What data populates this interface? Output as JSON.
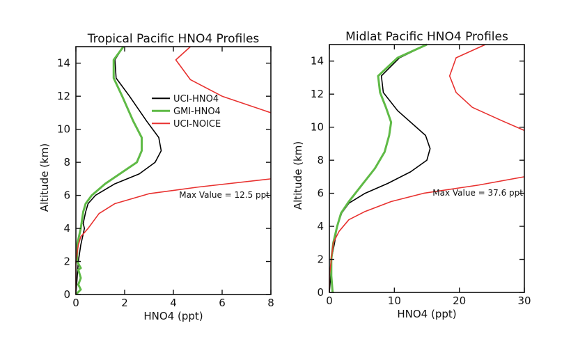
{
  "chart_data": [
    {
      "type": "line",
      "title": "Tropical Pacific HNO4 Profiles",
      "xlabel": "HNO4 (ppt)",
      "ylabel": "Altitude (km)",
      "xlim": [
        0,
        8
      ],
      "ylim": [
        0,
        15
      ],
      "xticks": [
        0,
        2,
        4,
        6,
        8
      ],
      "yticks": [
        0,
        2,
        4,
        6,
        8,
        10,
        12,
        14
      ],
      "annotation": "Max Value = 12.5 ppt",
      "legend": "upper-center",
      "series": [
        {
          "name": "UCI-HNO4",
          "color": "#000000",
          "points": [
            [
              0,
              0
            ],
            [
              0.05,
              1
            ],
            [
              0.1,
              2
            ],
            [
              0.2,
              3
            ],
            [
              0.35,
              4
            ],
            [
              0.3,
              4.3
            ],
            [
              0.4,
              5
            ],
            [
              0.5,
              5.5
            ],
            [
              0.8,
              6
            ],
            [
              1.6,
              6.7
            ],
            [
              2.6,
              7.3
            ],
            [
              3.25,
              8
            ],
            [
              3.5,
              8.7
            ],
            [
              3.4,
              9.5
            ],
            [
              2.9,
              10.5
            ],
            [
              2.2,
              12
            ],
            [
              1.65,
              13.1
            ],
            [
              1.6,
              14.2
            ],
            [
              1.95,
              15
            ]
          ]
        },
        {
          "name": "GMI-HNO4",
          "color": "#5fba46",
          "points": [
            [
              0,
              0
            ],
            [
              0.2,
              0.3
            ],
            [
              0.1,
              0.6
            ],
            [
              0.2,
              1
            ],
            [
              0.1,
              1.5
            ],
            [
              0.2,
              1.6
            ],
            [
              0.05,
              2
            ],
            [
              0.05,
              3
            ],
            [
              0.2,
              4
            ],
            [
              0.3,
              5
            ],
            [
              0.4,
              5.5
            ],
            [
              0.65,
              6
            ],
            [
              1.2,
              6.7
            ],
            [
              1.8,
              7.3
            ],
            [
              2.5,
              8
            ],
            [
              2.7,
              8.7
            ],
            [
              2.7,
              9.5
            ],
            [
              2.35,
              10.5
            ],
            [
              1.9,
              12
            ],
            [
              1.55,
              13.1
            ],
            [
              1.55,
              14.2
            ],
            [
              1.95,
              15
            ]
          ]
        },
        {
          "name": "UCI-NOICE",
          "color": "#e8312f",
          "points": [
            [
              0,
              0
            ],
            [
              0,
              1
            ],
            [
              0,
              2
            ],
            [
              0.1,
              3
            ],
            [
              0.2,
              3.5
            ],
            [
              0.5,
              4
            ],
            [
              0.95,
              4.9
            ],
            [
              1.6,
              5.5
            ],
            [
              3,
              6.1
            ],
            [
              5,
              6.5
            ],
            [
              8,
              7
            ]
          ],
          "upper_points": [
            [
              8,
              11
            ],
            [
              6,
              12
            ],
            [
              4.7,
              13
            ],
            [
              4.1,
              14.2
            ],
            [
              4.7,
              15
            ]
          ]
        }
      ]
    },
    {
      "type": "line",
      "title": "Midlat Pacific HNO4 Profiles",
      "xlabel": "HNO4 (ppt)",
      "ylabel": "Altitude (km)",
      "xlim": [
        0,
        30
      ],
      "ylim": [
        0,
        15
      ],
      "xticks": [
        0,
        10,
        20,
        30
      ],
      "yticks": [
        0,
        2,
        4,
        6,
        8,
        10,
        12,
        14
      ],
      "annotation": "Max Value = 37.6 ppt",
      "series": [
        {
          "name": "UCI-HNO4",
          "color": "#000000",
          "points": [
            [
              0,
              0
            ],
            [
              0.2,
              1
            ],
            [
              0.3,
              2
            ],
            [
              0.8,
              3
            ],
            [
              1.2,
              4
            ],
            [
              1.9,
              4.8
            ],
            [
              3,
              5.4
            ],
            [
              5.5,
              6
            ],
            [
              9,
              6.6
            ],
            [
              12.5,
              7.3
            ],
            [
              15,
              8
            ],
            [
              15.5,
              8.7
            ],
            [
              14.8,
              9.5
            ],
            [
              10.5,
              11
            ],
            [
              8.3,
              12.1
            ],
            [
              8,
              13.1
            ],
            [
              10.8,
              14.2
            ],
            [
              15,
              15
            ]
          ]
        },
        {
          "name": "GMI-HNO4",
          "color": "#5fba46",
          "points": [
            [
              0.5,
              0
            ],
            [
              0.3,
              1
            ],
            [
              0.3,
              2
            ],
            [
              0.6,
              3
            ],
            [
              1.2,
              4
            ],
            [
              1.8,
              4.8
            ],
            [
              3,
              5.5
            ],
            [
              5,
              6.5
            ],
            [
              7,
              7.5
            ],
            [
              8.5,
              8.5
            ],
            [
              9.2,
              9.5
            ],
            [
              9.5,
              10.3
            ],
            [
              8.7,
              11.2
            ],
            [
              7.8,
              12.1
            ],
            [
              7.5,
              13.1
            ],
            [
              10.5,
              14.2
            ],
            [
              15,
              15
            ]
          ]
        },
        {
          "name": "UCI-NOICE",
          "color": "#e8312f",
          "points": [
            [
              0,
              0
            ],
            [
              0,
              1
            ],
            [
              0.3,
              2
            ],
            [
              0.6,
              3
            ],
            [
              1.5,
              3.7
            ],
            [
              3,
              4.4
            ],
            [
              5.5,
              4.9
            ],
            [
              9.5,
              5.5
            ],
            [
              14.5,
              6
            ],
            [
              23,
              6.5
            ],
            [
              30,
              7
            ]
          ],
          "upper_points": [
            [
              30,
              9.8
            ],
            [
              26.5,
              10.4
            ],
            [
              22,
              11.2
            ],
            [
              19.5,
              12.1
            ],
            [
              18.5,
              13.1
            ],
            [
              19.5,
              14.2
            ],
            [
              24,
              15
            ]
          ]
        }
      ]
    }
  ]
}
